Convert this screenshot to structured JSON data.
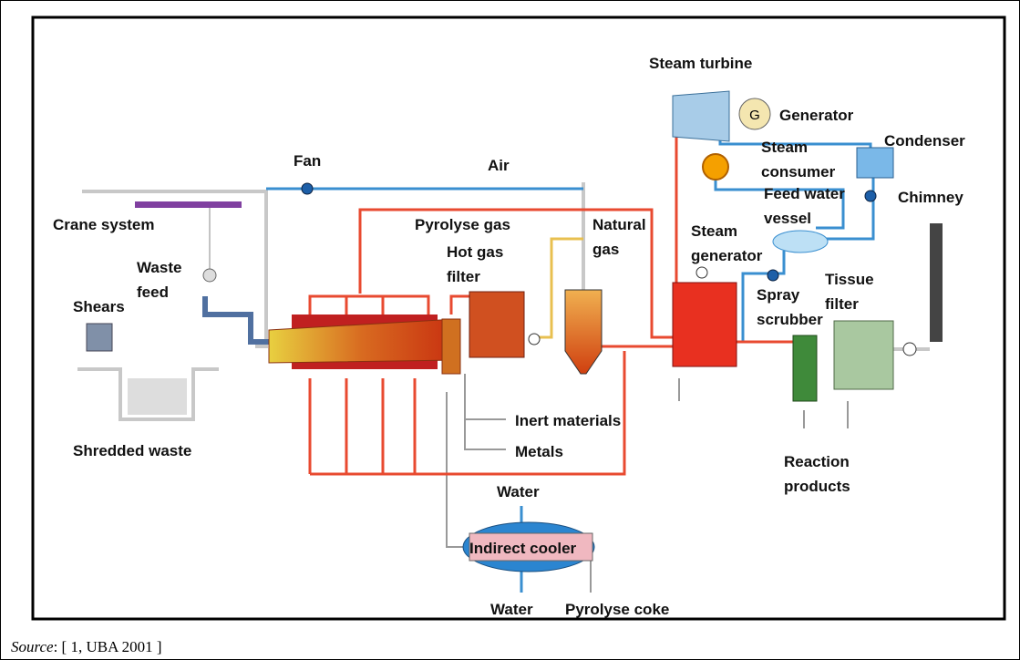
{
  "labels": [
    {
      "lines": [
        "Steam turbine"
      ]
    },
    {
      "lines": [
        "Generator"
      ]
    },
    {
      "lines": [
        "Steam",
        "consumer"
      ]
    },
    {
      "lines": [
        "Condenser"
      ]
    },
    {
      "lines": [
        "Feed water",
        "vessel"
      ]
    },
    {
      "lines": [
        "Chimney"
      ]
    },
    {
      "lines": [
        "Fan"
      ]
    },
    {
      "lines": [
        "Air"
      ]
    },
    {
      "lines": [
        "Crane system"
      ]
    },
    {
      "lines": [
        "Pyrolyse gas"
      ]
    },
    {
      "lines": [
        "Natural",
        "gas"
      ]
    },
    {
      "lines": [
        "Hot gas",
        "filter"
      ]
    },
    {
      "lines": [
        "Steam",
        "generator"
      ]
    },
    {
      "lines": [
        "Waste",
        "feed"
      ]
    },
    {
      "lines": [
        "Shears"
      ]
    },
    {
      "lines": [
        "Tissue",
        "filter"
      ]
    },
    {
      "lines": [
        "Spray",
        "scrubber"
      ]
    },
    {
      "lines": [
        "Inert materials"
      ]
    },
    {
      "lines": [
        "Metals"
      ]
    },
    {
      "lines": [
        "Shredded waste"
      ]
    },
    {
      "lines": [
        "Reaction",
        "products"
      ]
    },
    {
      "lines": [
        "Water"
      ]
    },
    {
      "lines": [
        "Indirect cooler"
      ]
    },
    {
      "lines": [
        "Water"
      ]
    },
    {
      "lines": [
        "Pyrolyse coke"
      ]
    }
  ],
  "generator_symbol": "G",
  "source": {
    "prefix": "Source",
    "text": ": [ 1, UBA 2001 ]"
  }
}
